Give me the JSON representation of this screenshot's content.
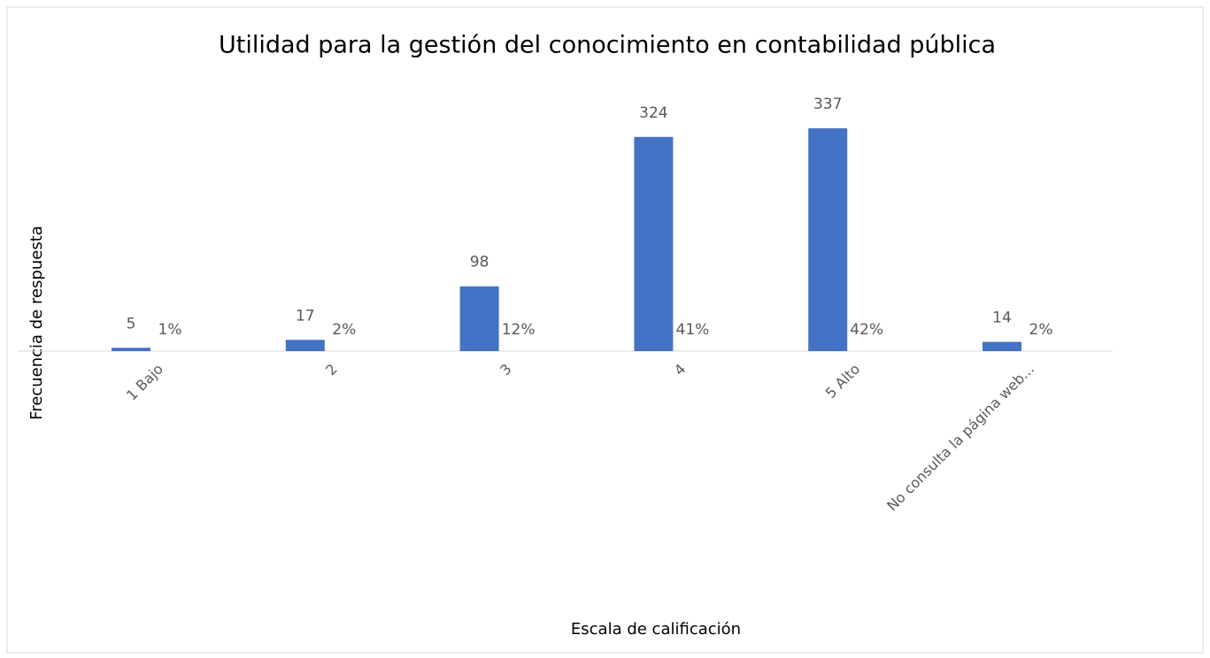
{
  "chart_data": {
    "type": "bar",
    "title": "Utilidad para la gestión del conocimiento en contabilidad pública",
    "xlabel": "Escala de calificación",
    "ylabel": "Frecuencia de respuesta",
    "categories": [
      "1 Bajo",
      "2",
      "3",
      "4",
      "5 Alto",
      "No consulta la página web..."
    ],
    "series": [
      {
        "name": "Frecuencia",
        "color": "#4472c4",
        "values": [
          5,
          17,
          98,
          324,
          337,
          14
        ]
      },
      {
        "name": "Porcentaje",
        "values": [
          1,
          2,
          12,
          41,
          42,
          2
        ],
        "value_labels": [
          "1%",
          "2%",
          "12%",
          "41%",
          "42%",
          "2%"
        ]
      }
    ],
    "ylim": [
      0,
      400
    ]
  }
}
